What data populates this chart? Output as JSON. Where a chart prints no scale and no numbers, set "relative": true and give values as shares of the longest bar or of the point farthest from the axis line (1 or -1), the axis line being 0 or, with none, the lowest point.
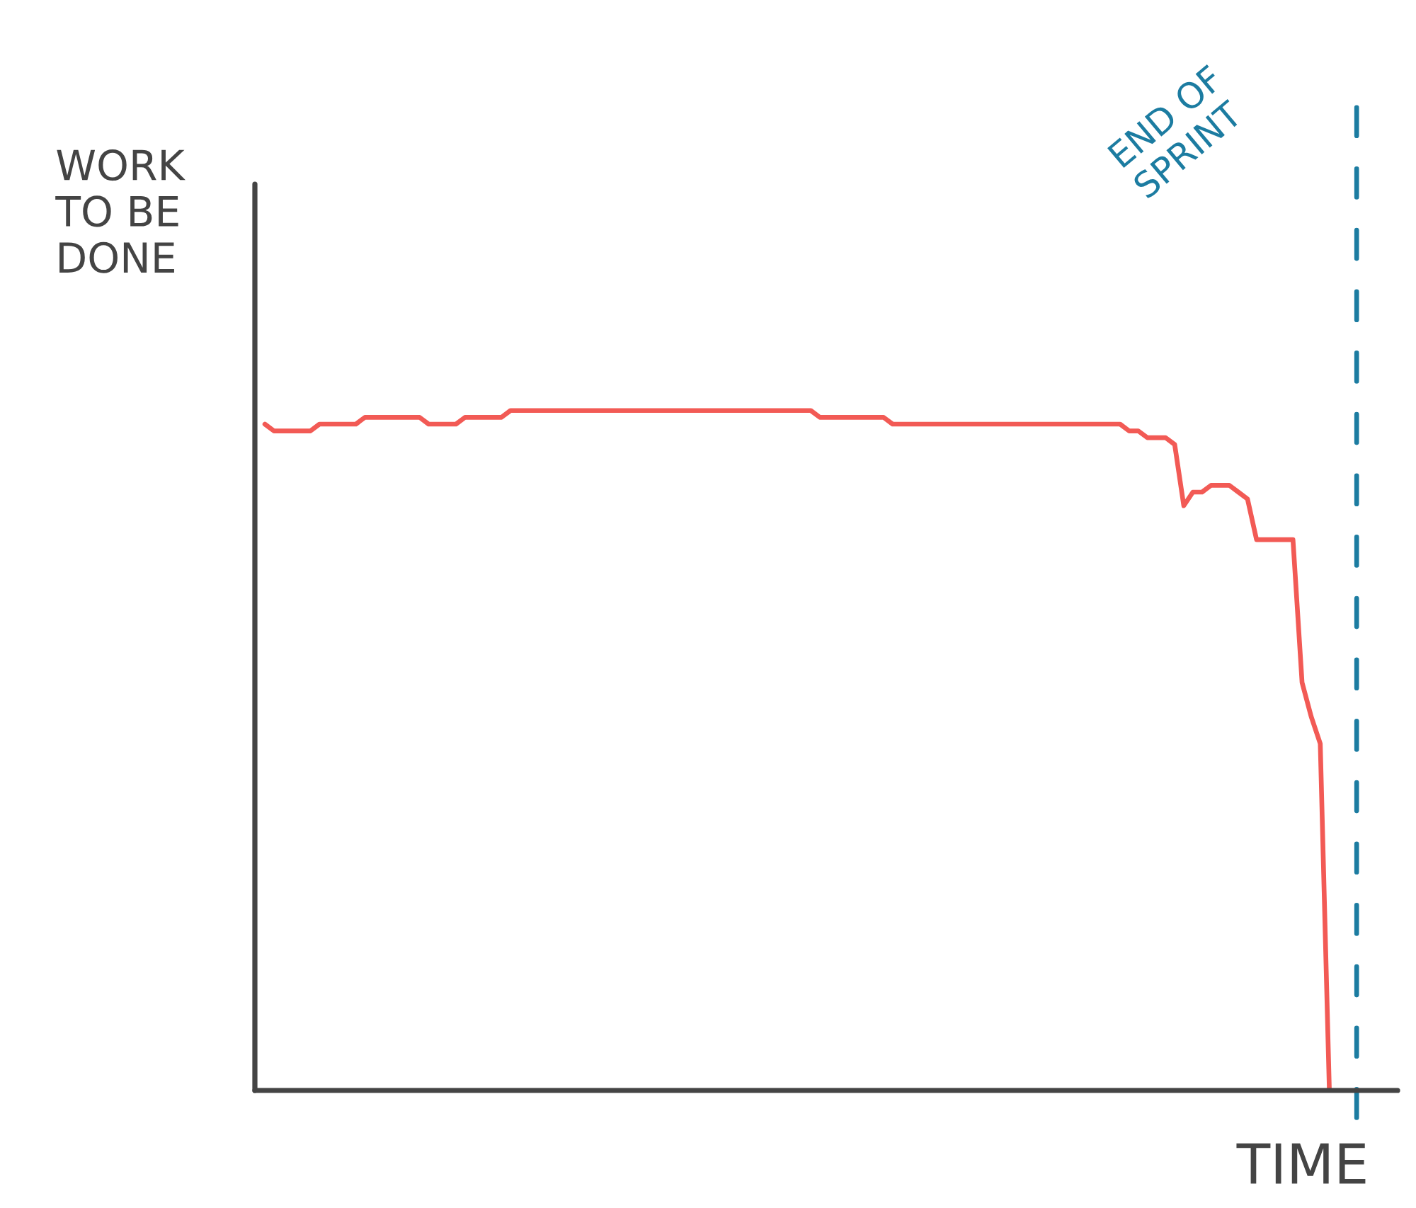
{
  "chart_data": {
    "type": "line",
    "ylabel": "WORK\nTO BE\nDONE",
    "xlabel": "TIME",
    "relative": true,
    "categories": [
      null,
      null,
      null,
      null,
      null,
      null,
      null,
      null,
      null,
      null,
      null,
      null,
      null,
      null,
      null,
      null,
      null,
      null,
      null,
      null,
      null,
      null,
      null,
      null,
      null,
      null,
      null,
      null,
      null,
      null,
      null,
      null,
      null,
      null,
      null,
      null,
      null,
      null,
      null,
      null,
      null,
      null,
      null,
      null,
      null,
      null,
      null,
      null,
      null,
      null,
      null,
      null,
      null,
      null,
      null,
      null,
      null,
      null,
      null,
      null,
      null,
      null,
      null,
      null,
      null,
      null,
      null,
      null,
      null,
      null,
      null,
      null,
      null,
      null,
      null,
      null,
      null,
      null,
      null,
      null,
      null,
      null,
      null,
      null,
      null,
      null,
      null,
      null,
      null,
      null,
      null,
      null,
      null,
      null,
      null,
      null,
      null,
      null,
      null,
      null,
      null,
      null,
      null,
      null,
      null,
      null,
      null,
      null,
      null,
      null,
      null,
      null,
      null,
      null,
      null,
      null,
      null,
      null
    ],
    "series": [
      {
        "color": "#f25a55",
        "values": [
          0.98,
          0.97,
          0.97,
          0.97,
          0.97,
          0.97,
          0.98,
          0.98,
          0.98,
          0.98,
          0.98,
          0.99,
          0.99,
          0.99,
          0.99,
          0.99,
          0.99,
          0.99,
          0.98,
          0.98,
          0.98,
          0.98,
          0.99,
          0.99,
          0.99,
          0.99,
          0.99,
          1.0,
          1.0,
          1.0,
          1.0,
          1.0,
          1.0,
          1.0,
          1.0,
          1.0,
          1.0,
          1.0,
          1.0,
          1.0,
          1.0,
          1.0,
          1.0,
          1.0,
          1.0,
          1.0,
          1.0,
          1.0,
          1.0,
          1.0,
          1.0,
          1.0,
          1.0,
          1.0,
          1.0,
          1.0,
          1.0,
          1.0,
          1.0,
          1.0,
          1.0,
          0.99,
          0.99,
          0.99,
          0.99,
          0.99,
          0.99,
          0.99,
          0.99,
          0.98,
          0.98,
          0.98,
          0.98,
          0.98,
          0.98,
          0.98,
          0.98,
          0.98,
          0.98,
          0.98,
          0.98,
          0.98,
          0.98,
          0.98,
          0.98,
          0.98,
          0.98,
          0.98,
          0.98,
          0.98,
          0.98,
          0.98,
          0.98,
          0.98,
          0.98,
          0.97,
          0.97,
          0.96,
          0.96,
          0.96,
          0.95,
          0.86,
          0.88,
          0.88,
          0.89,
          0.89,
          0.89,
          0.88,
          0.87,
          0.81,
          0.81,
          0.81,
          0.81,
          0.81,
          0.6,
          0.55,
          0.51,
          0
        ]
      }
    ],
    "annotations": [
      "END OF\nSPRINT"
    ]
  }
}
